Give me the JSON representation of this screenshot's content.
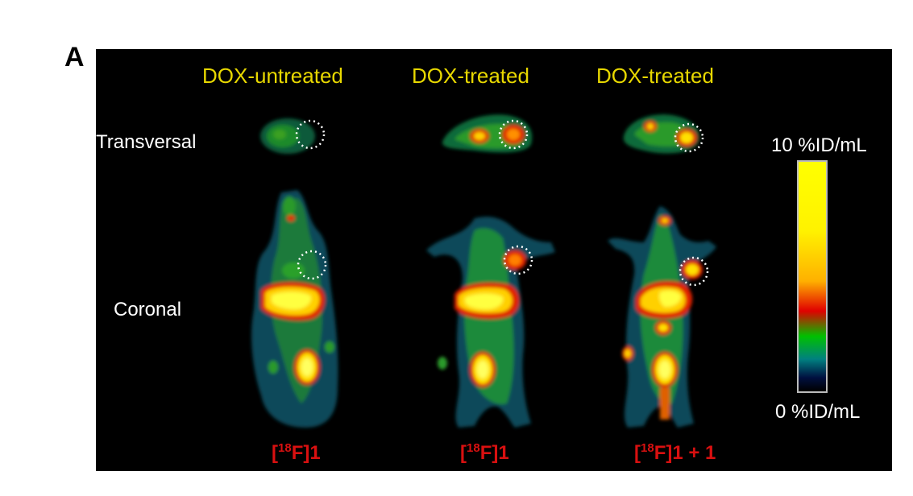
{
  "panel_label": "A",
  "columns": [
    {
      "title": "DOX-untreated",
      "tracer_prefix": "[",
      "tracer_iso": "18",
      "tracer_suffix": "F]1"
    },
    {
      "title": "DOX-treated",
      "tracer_prefix": "[",
      "tracer_iso": "18",
      "tracer_suffix": "F]1"
    },
    {
      "title": "DOX-treated",
      "tracer_prefix": "[",
      "tracer_iso": "18",
      "tracer_suffix": "F]1 + 1"
    }
  ],
  "rows": {
    "transversal": "Transversal",
    "coronal": "Coronal"
  },
  "colorbar": {
    "max_label": "10 %ID/mL",
    "min_label": "0 %ID/mL",
    "colors": [
      "#ffff00",
      "#ffb000",
      "#e00000",
      "#00c000",
      "#008080",
      "#000000"
    ]
  }
}
